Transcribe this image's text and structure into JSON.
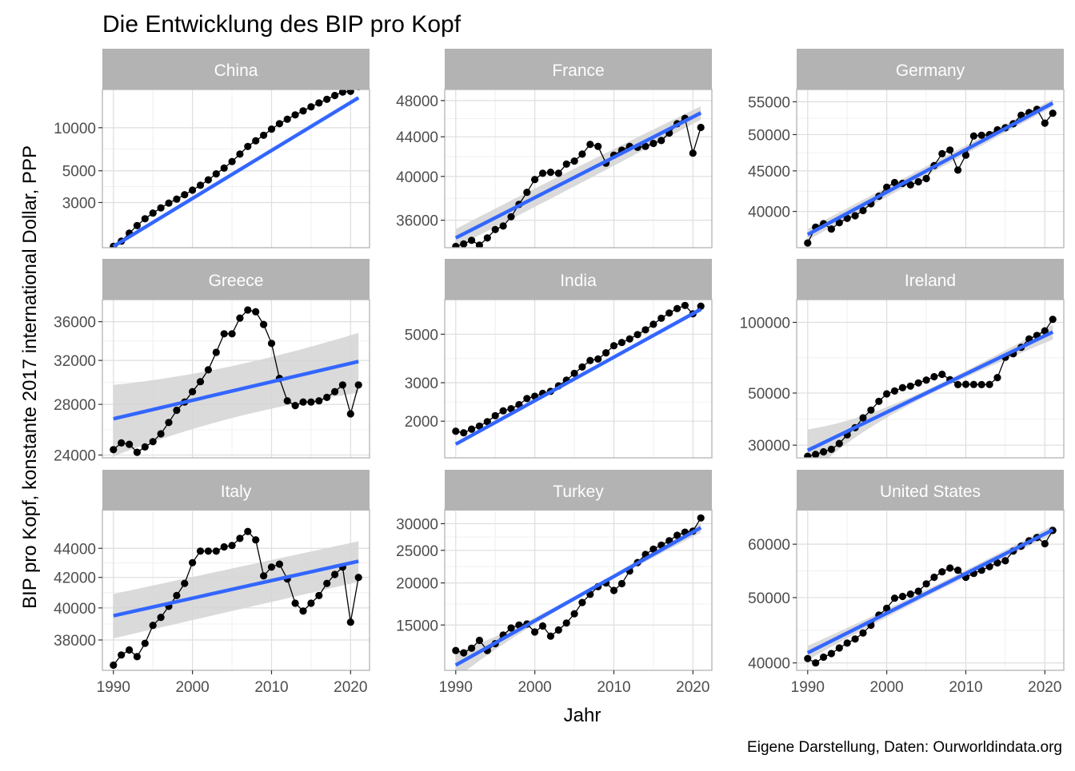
{
  "chart_data": {
    "type": "line",
    "title": "Die Entwicklung des BIP pro Kopf",
    "xlabel": "Jahr",
    "ylabel": "BIP pro Kopf, konstante 2017 international Dollar, PPP",
    "caption": "Eigene Darstellung, Daten: Ourworldindata.org",
    "x_scale": "linear",
    "y_scale": "log",
    "xlim": [
      1990,
      2021
    ],
    "x_ticks": [
      1990,
      2000,
      2010,
      2020
    ],
    "grid": true,
    "smooth": "linear fit on log scale with confidence band",
    "colors": {
      "points": "#000000",
      "line": "#000000",
      "fit": "#3366ff",
      "band": "#d3d3d3",
      "strip": "#b3b3b3"
    },
    "panels": [
      {
        "name": "China",
        "ylim": [
          1450,
          18500
        ],
        "y_ticks": [
          3000,
          5000,
          10000
        ],
        "fit": [
          1480,
          16200
        ],
        "band": [
          0,
          0
        ],
        "values": [
          1480,
          1610,
          1830,
          2070,
          2310,
          2530,
          2750,
          2970,
          3170,
          3400,
          3660,
          3960,
          4320,
          4760,
          5220,
          5800,
          6540,
          7400,
          8100,
          8860,
          9780,
          10670,
          11460,
          12290,
          13110,
          14000,
          14880,
          15800,
          16790,
          17760,
          17970,
          19370
        ]
      },
      {
        "name": "France",
        "ylim": [
          33700,
          49300
        ],
        "y_ticks": [
          36000,
          40000,
          44000,
          48000
        ],
        "fit": [
          34500,
          46600
        ],
        "band": [
          850,
          750
        ],
        "values": [
          33800,
          34000,
          34300,
          33900,
          34500,
          35200,
          35500,
          36300,
          37400,
          38500,
          39700,
          40300,
          40400,
          40300,
          41200,
          41500,
          42200,
          43200,
          43000,
          41300,
          42100,
          42600,
          43000,
          42900,
          43000,
          43300,
          43600,
          44400,
          45400,
          46000,
          42300,
          45000
        ]
      },
      {
        "name": "Germany",
        "ylim": [
          36000,
          57000
        ],
        "y_ticks": [
          40000,
          45000,
          50000,
          55000
        ],
        "fit": [
          37400,
          54800
        ],
        "band": [
          600,
          600
        ],
        "values": [
          36500,
          38200,
          38600,
          38000,
          38700,
          39200,
          39500,
          40100,
          40900,
          41800,
          42900,
          43500,
          43400,
          43200,
          43600,
          44000,
          45700,
          47300,
          47800,
          45100,
          47100,
          49800,
          49900,
          50000,
          50700,
          51000,
          51600,
          52900,
          53300,
          53800,
          51700,
          53200
        ]
      },
      {
        "name": "Greece",
        "ylim": [
          23800,
          38500
        ],
        "y_ticks": [
          24000,
          28000,
          32000,
          36000
        ],
        "fit": [
          26800,
          31900
        ],
        "band": [
          2300,
          2900
        ],
        "values": [
          24400,
          24900,
          24800,
          24200,
          24600,
          25000,
          25600,
          26500,
          27500,
          28200,
          29100,
          30000,
          31100,
          32800,
          34700,
          34700,
          36400,
          37300,
          37100,
          35700,
          33700,
          30300,
          28300,
          27900,
          28200,
          28200,
          28300,
          28600,
          29100,
          29700,
          27200,
          29700
        ]
      },
      {
        "name": "India",
        "ylim": [
          1360,
          7200
        ],
        "y_ticks": [
          2000,
          3000,
          5000
        ],
        "fit": [
          1570,
          6500
        ],
        "band": [
          0,
          0
        ],
        "values": [
          1800,
          1770,
          1840,
          1900,
          1990,
          2120,
          2230,
          2280,
          2380,
          2540,
          2600,
          2680,
          2740,
          2900,
          3080,
          3310,
          3540,
          3790,
          3850,
          4110,
          4430,
          4580,
          4760,
          4980,
          5240,
          5550,
          5920,
          6250,
          6550,
          6770,
          6200,
          6720
        ]
      },
      {
        "name": "Ireland",
        "ylim": [
          26500,
          125000
        ],
        "y_ticks": [
          30000,
          50000,
          100000
        ],
        "fit": [
          28500,
          91000
        ],
        "band": [
          1500,
          6500
        ],
        "values": [
          26900,
          27400,
          28100,
          28800,
          30500,
          33200,
          35600,
          39200,
          42300,
          46100,
          49600,
          51000,
          52700,
          53500,
          55200,
          56800,
          58700,
          60100,
          57000,
          54300,
          54500,
          54400,
          54300,
          54400,
          58200,
          71000,
          73500,
          78300,
          85000,
          88000,
          92000,
          103000
        ]
      },
      {
        "name": "Italy",
        "ylim": [
          36200,
          46800
        ],
        "y_ticks": [
          38000,
          40000,
          42000,
          44000
        ],
        "fit": [
          39500,
          43100
        ],
        "band": [
          1400,
          1400
        ],
        "values": [
          36500,
          37100,
          37400,
          37000,
          37800,
          38900,
          39400,
          40100,
          40800,
          41600,
          43000,
          43800,
          43800,
          43800,
          44100,
          44200,
          44700,
          45200,
          44600,
          42100,
          42700,
          42900,
          41900,
          40300,
          39800,
          40300,
          40800,
          41600,
          42200,
          42700,
          39100,
          42000
        ]
      },
      {
        "name": "Turkey",
        "ylim": [
          11000,
          33000
        ],
        "y_ticks": [
          15000,
          20000,
          25000,
          30000
        ],
        "fit": [
          11400,
          29200
        ],
        "band": [
          250,
          1000
        ],
        "values": [
          12600,
          12400,
          12800,
          13500,
          12600,
          13200,
          14000,
          14700,
          15000,
          15100,
          14300,
          14900,
          13900,
          14500,
          15200,
          16200,
          17500,
          18500,
          19500,
          20000,
          19000,
          19900,
          21700,
          23000,
          24300,
          25200,
          25900,
          26700,
          27700,
          28300,
          28500,
          31200
        ]
      },
      {
        "name": "United States",
        "ylim": [
          39000,
          67500
        ],
        "y_ticks": [
          40000,
          50000,
          60000
        ],
        "fit": [
          41400,
          63000
        ],
        "band": [
          600,
          1000
        ],
        "values": [
          40600,
          40000,
          40800,
          41300,
          42100,
          42800,
          43400,
          44300,
          45500,
          47100,
          48200,
          49900,
          50200,
          50600,
          51100,
          52400,
          53600,
          54600,
          55300,
          54900,
          53600,
          54300,
          54900,
          55600,
          56300,
          56700,
          58600,
          59600,
          60700,
          61400,
          60100,
          62900
        ]
      }
    ]
  }
}
